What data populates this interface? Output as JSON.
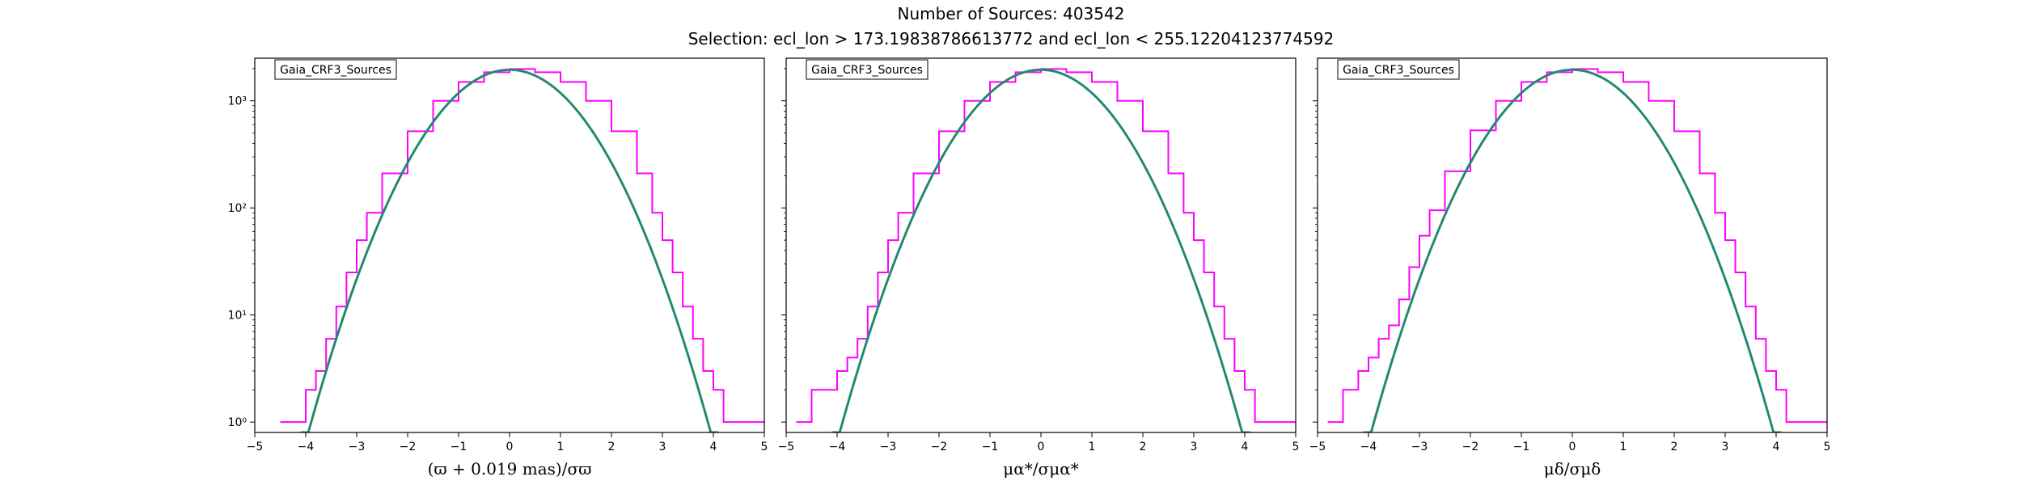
{
  "figure": {
    "title_line1": "Number of Sources: 403542",
    "title_line2": "Selection: ecl_lon > 173.19838786613772 and ecl_lon < 255.12204123774592"
  },
  "colors": {
    "histogram": "#ff00ff",
    "fit_curve_outer": "#2ca02c",
    "fit_curve_inner": "#1f77b4",
    "axes": "#000000",
    "background": "#ffffff"
  },
  "chart_data": [
    {
      "type": "histogram",
      "legend": "Gaia_CRF3_Sources",
      "legend_position": "top-left",
      "xlabel": "(ϖ + 0.019 mas)/σϖ",
      "ylabel": "",
      "xlim": [
        -5,
        5
      ],
      "ylim": [
        0.8,
        2500
      ],
      "yscale": "log",
      "grid": false,
      "xticks": [
        "−5",
        "−4",
        "−3",
        "−2",
        "−1",
        "0",
        "1",
        "2",
        "3",
        "4",
        "5"
      ],
      "yticks": [
        "10⁰",
        "10¹",
        "10²",
        "10³"
      ],
      "series": [
        {
          "kind": "step",
          "x": [
            -4.5,
            -4.2,
            -4.0,
            -3.8,
            -3.6,
            -3.4,
            -3.2,
            -3.0,
            -2.8,
            -2.5,
            -2.0,
            -1.5,
            -1.0,
            -0.5,
            0,
            0.5,
            1.0,
            1.5,
            2.0,
            2.5,
            2.8,
            3.0,
            3.2,
            3.4,
            3.6,
            3.8,
            4.0,
            4.2,
            4.5,
            4.8
          ],
          "y": [
            1,
            1,
            2,
            3,
            6,
            12,
            25,
            50,
            90,
            210,
            520,
            1000,
            1500,
            1850,
            1980,
            1850,
            1500,
            1000,
            520,
            210,
            90,
            50,
            25,
            12,
            6,
            3,
            2,
            1,
            1,
            1
          ]
        },
        {
          "kind": "gaussian",
          "amplitude": 1950,
          "mean": 0,
          "sigma": 1
        }
      ]
    },
    {
      "type": "histogram",
      "legend": "Gaia_CRF3_Sources",
      "legend_position": "top-left",
      "xlabel": "μα*/σμα*",
      "ylabel": "",
      "xlim": [
        -5,
        5
      ],
      "ylim": [
        0.8,
        2500
      ],
      "yscale": "log",
      "grid": false,
      "xticks": [
        "−5",
        "−4",
        "−3",
        "−2",
        "−1",
        "0",
        "1",
        "2",
        "3",
        "4",
        "5"
      ],
      "yticks": [],
      "series": [
        {
          "kind": "step",
          "x": [
            -4.8,
            -4.5,
            -4.2,
            -4.0,
            -3.8,
            -3.6,
            -3.4,
            -3.2,
            -3.0,
            -2.8,
            -2.5,
            -2.0,
            -1.5,
            -1.0,
            -0.5,
            0,
            0.5,
            1.0,
            1.5,
            2.0,
            2.5,
            2.8,
            3.0,
            3.2,
            3.4,
            3.6,
            3.8,
            4.0,
            4.2,
            4.5,
            4.8
          ],
          "y": [
            1,
            2,
            2,
            3,
            4,
            6,
            12,
            25,
            50,
            90,
            210,
            520,
            1000,
            1500,
            1850,
            1980,
            1850,
            1500,
            1000,
            520,
            210,
            90,
            50,
            25,
            12,
            6,
            3,
            2,
            1,
            1,
            1
          ]
        },
        {
          "kind": "gaussian",
          "amplitude": 1950,
          "mean": 0,
          "sigma": 1
        }
      ]
    },
    {
      "type": "histogram",
      "legend": "Gaia_CRF3_Sources",
      "legend_position": "top-left",
      "xlabel": "μδ/σμδ",
      "ylabel": "",
      "xlim": [
        -5,
        5
      ],
      "ylim": [
        0.8,
        2500
      ],
      "yscale": "log",
      "grid": false,
      "xticks": [
        "−5",
        "−4",
        "−3",
        "−2",
        "−1",
        "0",
        "1",
        "2",
        "3",
        "4",
        "5"
      ],
      "yticks": [],
      "series": [
        {
          "kind": "step",
          "x": [
            -4.8,
            -4.5,
            -4.2,
            -4.0,
            -3.8,
            -3.6,
            -3.4,
            -3.2,
            -3.0,
            -2.8,
            -2.5,
            -2.0,
            -1.5,
            -1.0,
            -0.5,
            0,
            0.5,
            1.0,
            1.5,
            2.0,
            2.5,
            2.8,
            3.0,
            3.2,
            3.4,
            3.6,
            3.8,
            4.0,
            4.2,
            4.5,
            4.8
          ],
          "y": [
            1,
            2,
            3,
            4,
            6,
            8,
            14,
            28,
            55,
            95,
            220,
            530,
            1000,
            1500,
            1850,
            1980,
            1850,
            1500,
            1000,
            520,
            210,
            90,
            50,
            25,
            12,
            6,
            3,
            2,
            1,
            1,
            1
          ]
        },
        {
          "kind": "gaussian",
          "amplitude": 1950,
          "mean": 0,
          "sigma": 1
        }
      ]
    }
  ]
}
